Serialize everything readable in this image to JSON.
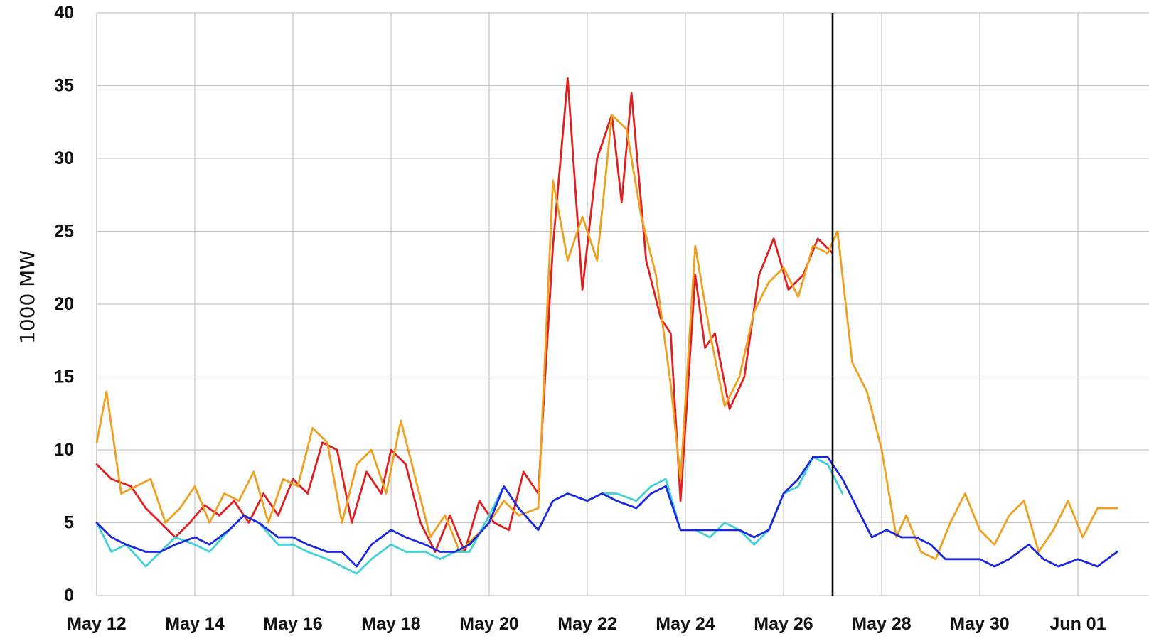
{
  "chart_data": {
    "type": "line",
    "title": "",
    "xlabel": "",
    "ylabel": "1000 MW",
    "x_axis": {
      "start": "May 12",
      "end": "Jun 02"
    },
    "ylim": [
      0,
      40
    ],
    "x_tick_labels": [
      "May 12",
      "May 14",
      "May 16",
      "May 18",
      "May 20",
      "May 22",
      "May 24",
      "May 26",
      "May 28",
      "May 30",
      "Jun 01"
    ],
    "y_tick_labels": [
      "0",
      "5",
      "10",
      "15",
      "20",
      "25",
      "30",
      "35",
      "40"
    ],
    "grid": true,
    "legend": "none",
    "marker_line": {
      "date": "May 27",
      "color": "#000000"
    },
    "series": [
      {
        "color": "#e02020",
        "points": [
          [
            "May 12",
            9
          ],
          [
            "May 12.3",
            8
          ],
          [
            "May 12.7",
            7.5
          ],
          [
            "May 13",
            6
          ],
          [
            "May 13.3",
            5
          ],
          [
            "May 13.6",
            4
          ],
          [
            "May 13.9",
            5
          ],
          [
            "May 14.2",
            6.2
          ],
          [
            "May 14.5",
            5.5
          ],
          [
            "May 14.8",
            6.5
          ],
          [
            "May 15.1",
            5
          ],
          [
            "May 15.4",
            7
          ],
          [
            "May 15.7",
            5.5
          ],
          [
            "May 16",
            8
          ],
          [
            "May 16.3",
            7
          ],
          [
            "May 16.6",
            10.5
          ],
          [
            "May 16.9",
            10
          ],
          [
            "May 17.2",
            5
          ],
          [
            "May 17.5",
            8.5
          ],
          [
            "May 17.8",
            7
          ],
          [
            "May 18",
            10
          ],
          [
            "May 18.3",
            9
          ],
          [
            "May 18.6",
            5
          ],
          [
            "May 18.9",
            3
          ],
          [
            "May 19.2",
            5.5
          ],
          [
            "May 19.5",
            3
          ],
          [
            "May 19.8",
            6.5
          ],
          [
            "May 20.1",
            5
          ],
          [
            "May 20.4",
            4.5
          ],
          [
            "May 20.7",
            8.5
          ],
          [
            "May 21",
            7
          ],
          [
            "May 21.3",
            24
          ],
          [
            "May 21.6",
            35.5
          ],
          [
            "May 21.9",
            21
          ],
          [
            "May 22.2",
            30
          ],
          [
            "May 22.5",
            33
          ],
          [
            "May 22.7",
            27
          ],
          [
            "May 22.9",
            34.5
          ],
          [
            "May 23.2",
            23
          ],
          [
            "May 23.5",
            19
          ],
          [
            "May 23.7",
            18
          ],
          [
            "May 23.9",
            6.5
          ],
          [
            "May 24.2",
            22
          ],
          [
            "May 24.4",
            17
          ],
          [
            "May 24.6",
            18
          ],
          [
            "May 24.9",
            12.8
          ],
          [
            "May 25.2",
            15
          ],
          [
            "May 25.5",
            22
          ],
          [
            "May 25.8",
            24.5
          ],
          [
            "May 26.1",
            21
          ],
          [
            "May 26.4",
            22
          ],
          [
            "May 26.7",
            24.5
          ],
          [
            "May 27",
            23.5
          ]
        ]
      },
      {
        "color": "#f0a020",
        "points": [
          [
            "May 12",
            10.5
          ],
          [
            "May 12.2",
            14
          ],
          [
            "May 12.5",
            7
          ],
          [
            "May 12.8",
            7.5
          ],
          [
            "May 13.1",
            8
          ],
          [
            "May 13.4",
            5
          ],
          [
            "May 13.7",
            6
          ],
          [
            "May 14",
            7.5
          ],
          [
            "May 14.3",
            5
          ],
          [
            "May 14.6",
            7
          ],
          [
            "May 14.9",
            6.5
          ],
          [
            "May 15.2",
            8.5
          ],
          [
            "May 15.5",
            5
          ],
          [
            "May 15.8",
            8
          ],
          [
            "May 16.1",
            7.5
          ],
          [
            "May 16.4",
            11.5
          ],
          [
            "May 16.7",
            10.5
          ],
          [
            "May 17",
            5
          ],
          [
            "May 17.3",
            9
          ],
          [
            "May 17.6",
            10
          ],
          [
            "May 17.9",
            7
          ],
          [
            "May 18.2",
            12
          ],
          [
            "May 18.5",
            8
          ],
          [
            "May 18.8",
            4
          ],
          [
            "May 19.1",
            5.5
          ],
          [
            "May 19.4",
            3
          ],
          [
            "May 19.7",
            4
          ],
          [
            "May 20",
            5
          ],
          [
            "May 20.3",
            6.5
          ],
          [
            "May 20.6",
            5.5
          ],
          [
            "May 21",
            6
          ],
          [
            "May 21.3",
            28.5
          ],
          [
            "May 21.6",
            23
          ],
          [
            "May 21.9",
            26
          ],
          [
            "May 22.2",
            23
          ],
          [
            "May 22.5",
            33
          ],
          [
            "May 22.8",
            32
          ],
          [
            "May 23.1",
            26
          ],
          [
            "May 23.4",
            22
          ],
          [
            "May 23.7",
            14.5
          ],
          [
            "May 23.9",
            8
          ],
          [
            "May 24.2",
            24
          ],
          [
            "May 24.5",
            18
          ],
          [
            "May 24.8",
            13
          ],
          [
            "May 25.1",
            15
          ],
          [
            "May 25.4",
            19.5
          ],
          [
            "May 25.7",
            21.5
          ],
          [
            "May 26",
            22.5
          ],
          [
            "May 26.3",
            20.5
          ],
          [
            "May 26.6",
            24
          ],
          [
            "May 26.9",
            23.5
          ],
          [
            "May 27.1",
            25
          ],
          [
            "May 27.4",
            16
          ],
          [
            "May 27.7",
            14
          ],
          [
            "May 28",
            10
          ],
          [
            "May 28.3",
            4
          ],
          [
            "May 28.5",
            5.5
          ],
          [
            "May 28.8",
            3
          ],
          [
            "May 29.1",
            2.5
          ],
          [
            "May 29.4",
            5
          ],
          [
            "May 29.7",
            7
          ],
          [
            "May 30",
            4.5
          ],
          [
            "May 30.3",
            3.5
          ],
          [
            "May 30.6",
            5.5
          ],
          [
            "May 30.9",
            6.5
          ],
          [
            "May 31.2",
            3
          ],
          [
            "May 31.5",
            4.5
          ],
          [
            "May 31.8",
            6.5
          ],
          [
            "Jun 01.1",
            4
          ],
          [
            "Jun 01.4",
            6
          ],
          [
            "Jun 01.8",
            6
          ]
        ]
      },
      {
        "color": "#40d0d8",
        "points": [
          [
            "May 12",
            5
          ],
          [
            "May 12.3",
            3
          ],
          [
            "May 12.6",
            3.5
          ],
          [
            "May 13",
            2
          ],
          [
            "May 13.3",
            3
          ],
          [
            "May 13.6",
            4
          ],
          [
            "May 14",
            3.5
          ],
          [
            "May 14.3",
            3
          ],
          [
            "May 14.7",
            4.5
          ],
          [
            "May 15",
            5.5
          ],
          [
            "May 15.3",
            5
          ],
          [
            "May 15.7",
            3.5
          ],
          [
            "May 16",
            3.5
          ],
          [
            "May 16.3",
            3
          ],
          [
            "May 16.7",
            2.5
          ],
          [
            "May 17",
            2
          ],
          [
            "May 17.3",
            1.5
          ],
          [
            "May 17.6",
            2.5
          ],
          [
            "May 18",
            3.5
          ],
          [
            "May 18.3",
            3
          ],
          [
            "May 18.7",
            3
          ],
          [
            "May 19",
            2.5
          ],
          [
            "May 19.3",
            3
          ],
          [
            "May 19.6",
            3
          ],
          [
            "May 20",
            5.5
          ],
          [
            "May 20.3",
            7.5
          ],
          [
            "May 20.6",
            6
          ],
          [
            "May 21",
            4.5
          ],
          [
            "May 21.3",
            6.5
          ],
          [
            "May 21.6",
            7
          ],
          [
            "May 22",
            6.5
          ],
          [
            "May 22.3",
            7
          ],
          [
            "May 22.6",
            7
          ],
          [
            "May 23",
            6.5
          ],
          [
            "May 23.3",
            7.5
          ],
          [
            "May 23.6",
            8
          ],
          [
            "May 23.9",
            4.5
          ],
          [
            "May 24.2",
            4.5
          ],
          [
            "May 24.5",
            4
          ],
          [
            "May 24.8",
            5
          ],
          [
            "May 25.1",
            4.5
          ],
          [
            "May 25.4",
            3.5
          ],
          [
            "May 25.7",
            4.5
          ],
          [
            "May 26",
            7
          ],
          [
            "May 26.3",
            7.5
          ],
          [
            "May 26.6",
            9.5
          ],
          [
            "May 26.9",
            9
          ],
          [
            "May 27.2",
            7
          ]
        ]
      },
      {
        "color": "#1c28e0",
        "points": [
          [
            "May 12",
            5
          ],
          [
            "May 12.3",
            4
          ],
          [
            "May 12.6",
            3.5
          ],
          [
            "May 13",
            3
          ],
          [
            "May 13.3",
            3
          ],
          [
            "May 13.6",
            3.5
          ],
          [
            "May 14",
            4
          ],
          [
            "May 14.3",
            3.5
          ],
          [
            "May 14.7",
            4.5
          ],
          [
            "May 15",
            5.5
          ],
          [
            "May 15.3",
            5
          ],
          [
            "May 15.7",
            4
          ],
          [
            "May 16",
            4
          ],
          [
            "May 16.3",
            3.5
          ],
          [
            "May 16.7",
            3
          ],
          [
            "May 17",
            3
          ],
          [
            "May 17.3",
            2
          ],
          [
            "May 17.6",
            3.5
          ],
          [
            "May 18",
            4.5
          ],
          [
            "May 18.3",
            4
          ],
          [
            "May 18.7",
            3.5
          ],
          [
            "May 19",
            3
          ],
          [
            "May 19.3",
            3
          ],
          [
            "May 19.6",
            3.5
          ],
          [
            "May 20",
            5
          ],
          [
            "May 20.3",
            7.5
          ],
          [
            "May 20.6",
            6
          ],
          [
            "May 21",
            4.5
          ],
          [
            "May 21.3",
            6.5
          ],
          [
            "May 21.6",
            7
          ],
          [
            "May 22",
            6.5
          ],
          [
            "May 22.3",
            7
          ],
          [
            "May 22.6",
            6.5
          ],
          [
            "May 23",
            6
          ],
          [
            "May 23.3",
            7
          ],
          [
            "May 23.6",
            7.5
          ],
          [
            "May 23.9",
            4.5
          ],
          [
            "May 24.2",
            4.5
          ],
          [
            "May 24.5",
            4.5
          ],
          [
            "May 24.8",
            4.5
          ],
          [
            "May 25.1",
            4.5
          ],
          [
            "May 25.4",
            4
          ],
          [
            "May 25.7",
            4.5
          ],
          [
            "May 26",
            7
          ],
          [
            "May 26.3",
            8
          ],
          [
            "May 26.6",
            9.5
          ],
          [
            "May 26.9",
            9.5
          ],
          [
            "May 27.2",
            8
          ],
          [
            "May 27.5",
            6
          ],
          [
            "May 27.8",
            4
          ],
          [
            "May 28.1",
            4.5
          ],
          [
            "May 28.4",
            4
          ],
          [
            "May 28.7",
            4
          ],
          [
            "May 29",
            3.5
          ],
          [
            "May 29.3",
            2.5
          ],
          [
            "May 29.6",
            2.5
          ],
          [
            "May 30",
            2.5
          ],
          [
            "May 30.3",
            2
          ],
          [
            "May 30.6",
            2.5
          ],
          [
            "May 31",
            3.5
          ],
          [
            "May 31.3",
            2.5
          ],
          [
            "May 31.6",
            2
          ],
          [
            "Jun 01",
            2.5
          ],
          [
            "Jun 01.4",
            2
          ],
          [
            "Jun 01.8",
            3
          ]
        ]
      }
    ]
  }
}
